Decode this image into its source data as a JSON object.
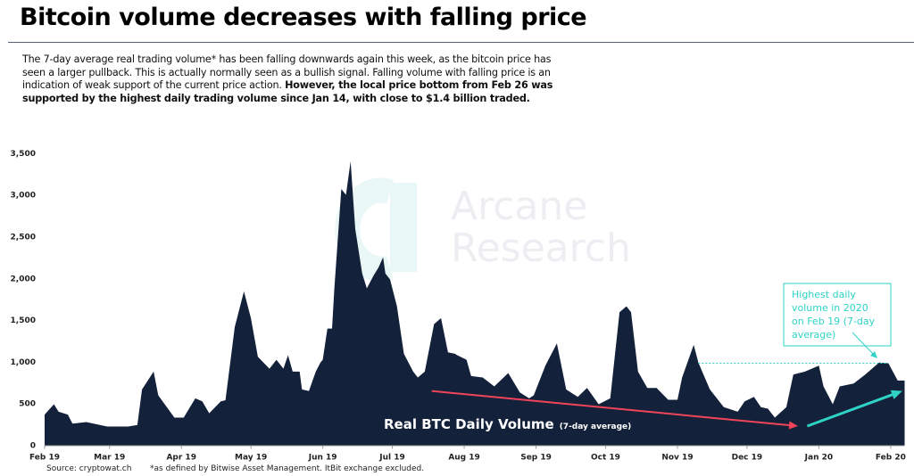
{
  "header": {
    "title": "Bitcoin volume decreases with falling price",
    "body_regular": "The 7-day average real trading volume* has been falling downwards again this week, as the bitcoin price has seen a larger pullback. This is actually normally seen as a bullish signal. Falling volume with falling price is an indication of weak support of the current price action. ",
    "body_bold": "However, the local price bottom from Feb 26 was supported by the highest daily trading volume since Jan 14, with close to $1.4 billion traded."
  },
  "watermark": {
    "line1": "Arcane",
    "line2": "Research"
  },
  "footer": {
    "source": "Source: cryptowat.ch",
    "note": "*as defined by Bitwise Asset Management. ItBit exchange excluded."
  },
  "colors": {
    "area": "#14213a",
    "down_arrow": "#f0445a",
    "up_arrow": "#2ed3c6",
    "annotation": "#2ed3c6",
    "watermark": "#eceef1"
  },
  "chart_data": {
    "type": "area",
    "title": "",
    "xlabel": "",
    "ylabel": "",
    "ylim": [
      0,
      3500
    ],
    "yticks": [
      0,
      500,
      1000,
      1500,
      2000,
      2500,
      3000,
      3500
    ],
    "ytick_labels": [
      "0",
      "500",
      "1,000",
      "1,500",
      "2,000",
      "2,500",
      "3,000",
      "3,500"
    ],
    "xticks": [
      "2019-02-01",
      "2019-03-01",
      "2019-04-01",
      "2019-05-01",
      "2019-06-01",
      "2019-07-01",
      "2019-08-01",
      "2019-09-01",
      "2019-10-01",
      "2019-11-01",
      "2019-12-01",
      "2020-01-01",
      "2020-02-01"
    ],
    "xtick_labels": [
      "Feb 19",
      "Mar 19",
      "Apr 19",
      "May 19",
      "Jun 19",
      "Jul 19",
      "Aug 19",
      "Sep 19",
      "Oct 19",
      "Nov 19",
      "Dec 19",
      "Jan 20",
      "Feb 20"
    ],
    "grid": false,
    "series": [
      {
        "name": "Real BTC Daily Volume",
        "note": "(7-day average)",
        "points": [
          [
            "2019-02-01",
            367
          ],
          [
            "2019-02-05",
            491
          ],
          [
            "2019-02-07",
            402
          ],
          [
            "2019-02-11",
            367
          ],
          [
            "2019-02-13",
            260
          ],
          [
            "2019-02-19",
            278
          ],
          [
            "2019-02-28",
            224
          ],
          [
            "2019-03-09",
            224
          ],
          [
            "2019-03-13",
            242
          ],
          [
            "2019-03-15",
            669
          ],
          [
            "2019-03-20",
            883
          ],
          [
            "2019-03-22",
            598
          ],
          [
            "2019-03-29",
            331
          ],
          [
            "2019-04-02",
            331
          ],
          [
            "2019-04-07",
            562
          ],
          [
            "2019-04-10",
            527
          ],
          [
            "2019-04-13",
            384
          ],
          [
            "2019-04-18",
            527
          ],
          [
            "2019-04-20",
            540
          ],
          [
            "2019-04-24",
            1417
          ],
          [
            "2019-04-28",
            1844
          ],
          [
            "2019-05-01",
            1524
          ],
          [
            "2019-05-04",
            1061
          ],
          [
            "2019-05-09",
            918
          ],
          [
            "2019-05-12",
            1025
          ],
          [
            "2019-05-15",
            918
          ],
          [
            "2019-05-17",
            1079
          ],
          [
            "2019-05-19",
            883
          ],
          [
            "2019-05-22",
            883
          ],
          [
            "2019-05-23",
            669
          ],
          [
            "2019-05-26",
            651
          ],
          [
            "2019-05-29",
            883
          ],
          [
            "2019-05-31",
            990
          ],
          [
            "2019-06-01",
            1025
          ],
          [
            "2019-06-03",
            1399
          ],
          [
            "2019-06-05",
            1399
          ],
          [
            "2019-06-06",
            1880
          ],
          [
            "2019-06-09",
            3072
          ],
          [
            "2019-06-11",
            3001
          ],
          [
            "2019-06-13",
            3403
          ],
          [
            "2019-06-15",
            2592
          ],
          [
            "2019-06-18",
            2058
          ],
          [
            "2019-06-20",
            1880
          ],
          [
            "2019-06-23",
            2040
          ],
          [
            "2019-06-25",
            2129
          ],
          [
            "2019-06-27",
            2253
          ],
          [
            "2019-06-28",
            2058
          ],
          [
            "2019-06-30",
            1987
          ],
          [
            "2019-07-03",
            1666
          ],
          [
            "2019-07-06",
            1096
          ],
          [
            "2019-07-10",
            883
          ],
          [
            "2019-07-12",
            812
          ],
          [
            "2019-07-15",
            883
          ],
          [
            "2019-07-19",
            1452
          ],
          [
            "2019-07-22",
            1524
          ],
          [
            "2019-07-25",
            1114
          ],
          [
            "2019-07-28",
            1096
          ],
          [
            "2019-07-29",
            1079
          ],
          [
            "2019-08-02",
            1025
          ],
          [
            "2019-08-04",
            829
          ],
          [
            "2019-08-09",
            812
          ],
          [
            "2019-08-14",
            705
          ],
          [
            "2019-08-20",
            865
          ],
          [
            "2019-08-25",
            634
          ],
          [
            "2019-08-29",
            562
          ],
          [
            "2019-08-31",
            598
          ],
          [
            "2019-09-05",
            954
          ],
          [
            "2019-09-10",
            1221
          ],
          [
            "2019-09-14",
            669
          ],
          [
            "2019-09-19",
            580
          ],
          [
            "2019-09-23",
            687
          ],
          [
            "2019-09-28",
            491
          ],
          [
            "2019-10-03",
            562
          ],
          [
            "2019-10-07",
            1595
          ],
          [
            "2019-10-10",
            1666
          ],
          [
            "2019-10-12",
            1595
          ],
          [
            "2019-10-15",
            883
          ],
          [
            "2019-10-19",
            687
          ],
          [
            "2019-10-23",
            687
          ],
          [
            "2019-10-28",
            545
          ],
          [
            "2019-11-01",
            545
          ],
          [
            "2019-11-03",
            812
          ],
          [
            "2019-11-08",
            1203
          ],
          [
            "2019-11-10",
            990
          ],
          [
            "2019-11-15",
            669
          ],
          [
            "2019-11-21",
            456
          ],
          [
            "2019-11-27",
            402
          ],
          [
            "2019-11-30",
            527
          ],
          [
            "2019-12-04",
            580
          ],
          [
            "2019-12-07",
            456
          ],
          [
            "2019-12-10",
            438
          ],
          [
            "2019-12-13",
            331
          ],
          [
            "2019-12-18",
            456
          ],
          [
            "2019-12-21",
            847
          ],
          [
            "2019-12-26",
            883
          ],
          [
            "2020-01-01",
            954
          ],
          [
            "2020-01-03",
            705
          ],
          [
            "2020-01-07",
            491
          ],
          [
            "2020-01-10",
            705
          ],
          [
            "2020-01-16",
            740
          ],
          [
            "2020-01-21",
            847
          ],
          [
            "2020-01-27",
            990
          ],
          [
            "2020-01-31",
            983
          ],
          [
            "2020-02-04",
            776
          ],
          [
            "2020-02-07",
            776
          ]
        ]
      }
    ],
    "reference_line": {
      "value": 983,
      "from": "2019-11-10",
      "to": "2020-01-31",
      "style": "dotted"
    },
    "annotations": {
      "series_label": "Real BTC Daily Volume",
      "series_label_note": "(7-day average)",
      "callout": "Highest daily volume in 2020 on Feb 19 (7-day average)",
      "down_trend": {
        "from": [
          "2019-07-18",
          650
        ],
        "to": [
          "2019-12-23",
          230
        ]
      },
      "up_trend": {
        "from": [
          "2019-12-27",
          230
        ],
        "to": [
          "2020-02-06",
          650
        ]
      }
    }
  }
}
